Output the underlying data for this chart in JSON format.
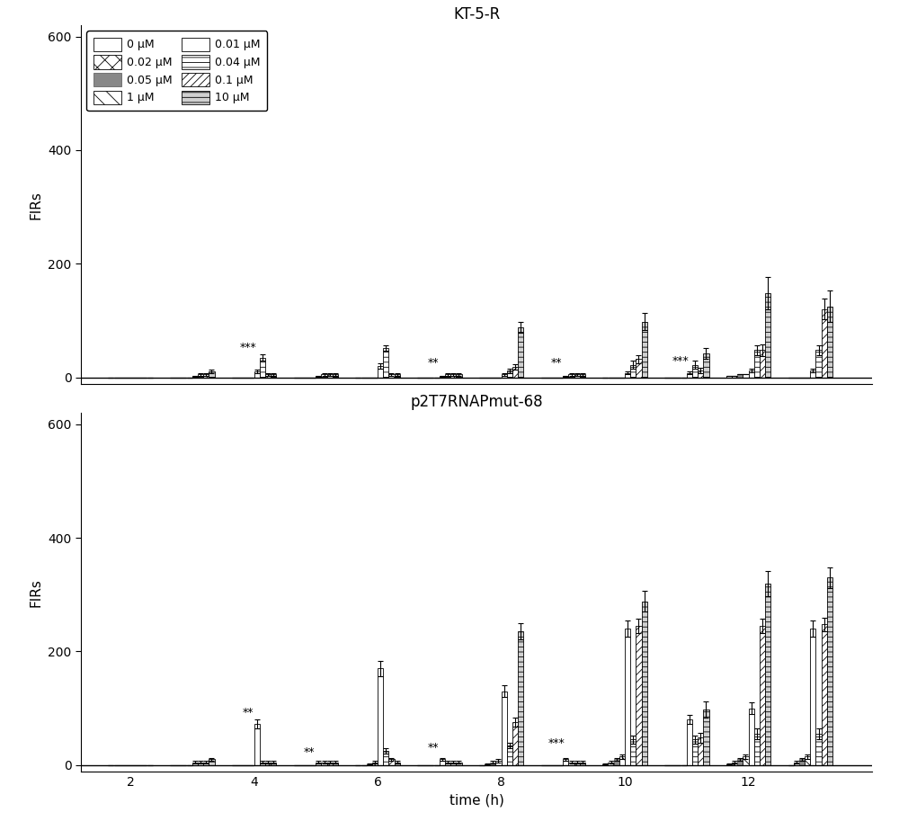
{
  "title1": "KT-5-R",
  "title2": "p2T7RNAPmut-68",
  "ylabel": "FIRs",
  "xlabel": "time (h)",
  "legend_labels": [
    "0 μM",
    "0.02 μM",
    "0.05 μM",
    "1 μM",
    "0.01 μM",
    "0.04 μM",
    "0.1 μM",
    "10 μM"
  ],
  "time_points": [
    2,
    3,
    4,
    5,
    6,
    7,
    8,
    9,
    10,
    11,
    12,
    13
  ],
  "bar_width": 0.09,
  "ylim1": [
    -12,
    620
  ],
  "ylim2": [
    -12,
    620
  ],
  "yticks": [
    0,
    200,
    400,
    600
  ],
  "xticks": [
    2,
    4,
    6,
    8,
    10,
    12
  ],
  "xlim": [
    1.2,
    14.0
  ],
  "KT5R_values": [
    [
      0,
      0,
      0,
      0,
      0,
      0,
      0,
      0,
      0,
      0,
      2,
      0
    ],
    [
      0,
      0,
      0,
      0,
      0,
      0,
      0,
      0,
      0,
      0,
      2,
      0
    ],
    [
      0,
      0,
      0,
      0,
      0,
      0,
      0,
      0,
      0,
      0,
      5,
      0
    ],
    [
      0,
      0,
      0,
      0,
      0,
      0,
      0,
      0,
      0,
      0,
      5,
      0
    ],
    [
      0,
      2,
      10,
      2,
      20,
      2,
      5,
      2,
      8,
      8,
      12,
      12
    ],
    [
      0,
      5,
      35,
      5,
      52,
      5,
      12,
      5,
      22,
      22,
      48,
      48
    ],
    [
      0,
      5,
      5,
      5,
      5,
      5,
      18,
      5,
      32,
      12,
      48,
      120
    ],
    [
      0,
      10,
      5,
      5,
      5,
      5,
      88,
      5,
      98,
      42,
      148,
      125
    ]
  ],
  "KT5R_errors": [
    [
      0,
      0,
      0,
      0,
      0,
      0,
      0,
      0,
      0,
      0,
      0,
      0
    ],
    [
      0,
      0,
      0,
      0,
      0,
      0,
      0,
      0,
      0,
      0,
      0,
      0
    ],
    [
      0,
      0,
      0,
      0,
      0,
      0,
      0,
      0,
      0,
      0,
      0,
      0
    ],
    [
      0,
      0,
      0,
      0,
      0,
      0,
      0,
      0,
      0,
      0,
      0,
      0
    ],
    [
      0,
      1,
      3,
      1,
      4,
      1,
      2,
      1,
      3,
      3,
      3,
      3
    ],
    [
      0,
      2,
      5,
      2,
      5,
      2,
      4,
      2,
      7,
      7,
      9,
      9
    ],
    [
      0,
      2,
      2,
      2,
      2,
      2,
      5,
      2,
      7,
      5,
      10,
      18
    ],
    [
      0,
      3,
      2,
      2,
      2,
      2,
      10,
      2,
      15,
      10,
      28,
      28
    ]
  ],
  "p2T7_values": [
    [
      0,
      0,
      0,
      0,
      0,
      0,
      0,
      0,
      2,
      0,
      2,
      0
    ],
    [
      0,
      0,
      0,
      0,
      0,
      0,
      2,
      0,
      5,
      0,
      5,
      5
    ],
    [
      0,
      0,
      0,
      0,
      2,
      0,
      5,
      0,
      10,
      0,
      10,
      10
    ],
    [
      0,
      0,
      0,
      0,
      5,
      0,
      8,
      0,
      15,
      0,
      15,
      15
    ],
    [
      0,
      5,
      72,
      5,
      170,
      10,
      130,
      10,
      240,
      80,
      100,
      240
    ],
    [
      0,
      5,
      5,
      5,
      25,
      5,
      35,
      5,
      45,
      45,
      55,
      55
    ],
    [
      0,
      5,
      5,
      5,
      10,
      5,
      75,
      5,
      245,
      48,
      245,
      248
    ],
    [
      0,
      10,
      5,
      5,
      5,
      5,
      235,
      5,
      288,
      98,
      320,
      330
    ]
  ],
  "p2T7_errors": [
    [
      0,
      0,
      0,
      0,
      0,
      0,
      0,
      0,
      1,
      0,
      1,
      0
    ],
    [
      0,
      0,
      0,
      0,
      0,
      0,
      1,
      0,
      2,
      0,
      2,
      2
    ],
    [
      0,
      0,
      0,
      0,
      1,
      0,
      2,
      0,
      3,
      0,
      3,
      3
    ],
    [
      0,
      0,
      0,
      0,
      2,
      0,
      3,
      0,
      4,
      0,
      4,
      4
    ],
    [
      0,
      2,
      8,
      2,
      14,
      3,
      10,
      3,
      14,
      8,
      10,
      14
    ],
    [
      0,
      2,
      2,
      2,
      4,
      2,
      5,
      2,
      7,
      7,
      9,
      9
    ],
    [
      0,
      2,
      2,
      2,
      3,
      2,
      8,
      2,
      12,
      8,
      12,
      12
    ],
    [
      0,
      3,
      2,
      2,
      2,
      2,
      14,
      2,
      18,
      14,
      22,
      18
    ]
  ],
  "significance_KT5R": {
    "4": "***",
    "7": "**",
    "9": "**",
    "11": "***"
  },
  "significance_p2T7": {
    "4": "**",
    "5": "**",
    "7": "**",
    "9": "***"
  },
  "sig_ypos_KT5R": {
    "4": 42,
    "7": 15,
    "9": 16,
    "11": 18
  },
  "sig_ypos_p2T7": {
    "4": 82,
    "5": 12,
    "7": 20,
    "9": 28
  }
}
